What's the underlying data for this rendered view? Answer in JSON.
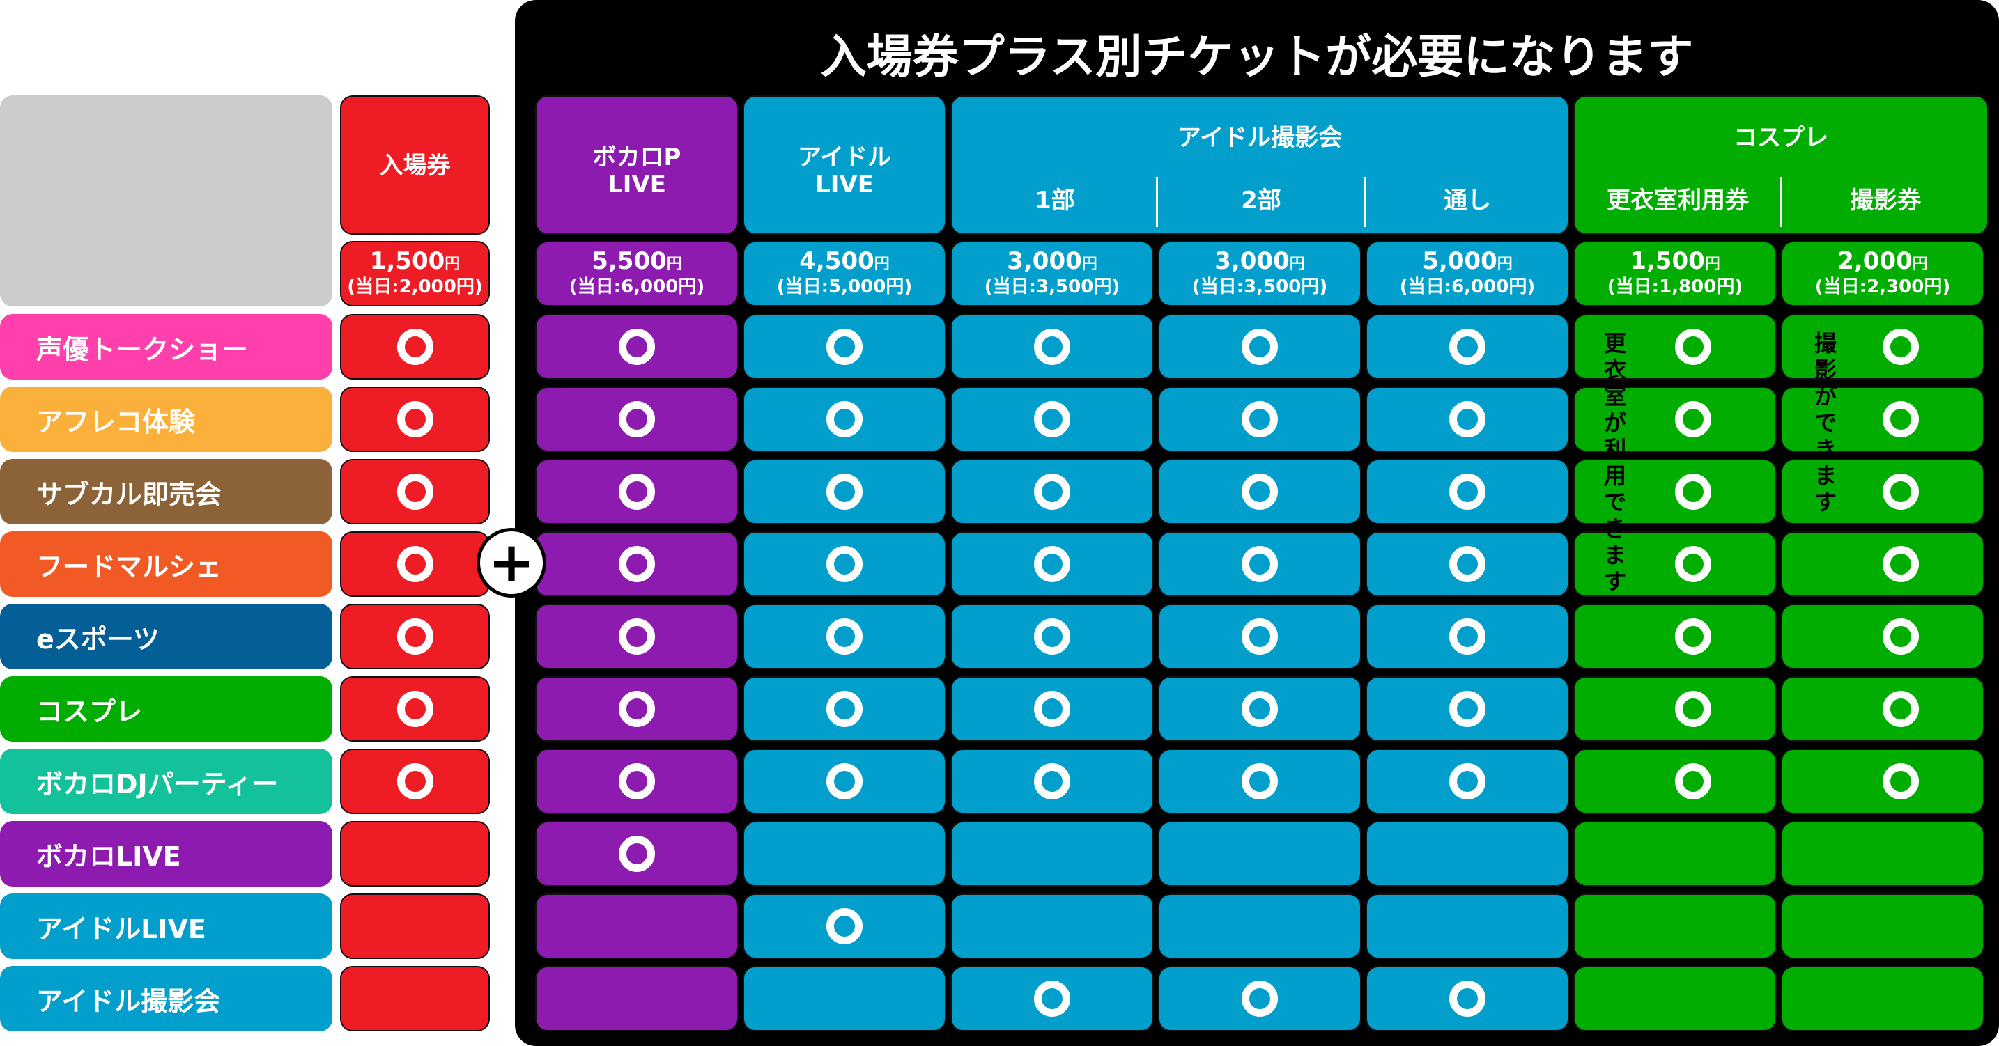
{
  "title": "入場券プラス別チケットが必要になります",
  "plus_symbol": "+",
  "admission": {
    "header": "入場券",
    "price": "1,500",
    "yen": "円",
    "sameday": "(当日:2,000円)"
  },
  "columns": [
    {
      "label_lines": [
        "ボカロP",
        "LIVE"
      ],
      "price": "5,500",
      "yen": "円",
      "sameday": "(当日:6,000円)"
    },
    {
      "label_lines": [
        "アイドル",
        "LIVE"
      ],
      "price": "4,500",
      "yen": "円",
      "sameday": "(当日:5,000円)"
    },
    {
      "label_lines": [
        "1部"
      ],
      "price": "3,000",
      "yen": "円",
      "sameday": "(当日:3,500円)"
    },
    {
      "label_lines": [
        "2部"
      ],
      "price": "3,000",
      "yen": "円",
      "sameday": "(当日:3,500円)"
    },
    {
      "label_lines": [
        "通し"
      ],
      "price": "5,000",
      "yen": "円",
      "sameday": "(当日:6,000円)"
    },
    {
      "label_lines": [
        "更衣室利用券"
      ],
      "price": "1,500",
      "yen": "円",
      "sameday": "(当日:1,800円)"
    },
    {
      "label_lines": [
        "撮影券"
      ],
      "price": "2,000",
      "yen": "円",
      "sameday": "(当日:2,300円)"
    }
  ],
  "group_headers": {
    "idol_photo": "アイドル撮影会",
    "cosplay": "コスプレ"
  },
  "notes": {
    "changing_room": "更衣室が利用できます",
    "photography": "撮影ができます"
  },
  "rows": [
    {
      "label": "声優トークショー",
      "color": "#ff3fab",
      "admission": true,
      "marks": [
        true,
        true,
        true,
        true,
        true,
        true,
        true
      ]
    },
    {
      "label": "アフレコ体験",
      "color": "#fbb03b",
      "admission": true,
      "marks": [
        true,
        true,
        true,
        true,
        true,
        true,
        true
      ]
    },
    {
      "label": "サブカル即売会",
      "color": "#8c6239",
      "admission": true,
      "marks": [
        true,
        true,
        true,
        true,
        true,
        true,
        true
      ]
    },
    {
      "label": "フードマルシェ",
      "color": "#f15a24",
      "admission": true,
      "marks": [
        true,
        true,
        true,
        true,
        true,
        true,
        true
      ]
    },
    {
      "label": "eスポーツ",
      "color": "#045f97",
      "admission": true,
      "marks": [
        true,
        true,
        true,
        true,
        true,
        true,
        true
      ]
    },
    {
      "label": "コスプレ",
      "color": "#00ad00",
      "admission": true,
      "marks": [
        true,
        true,
        true,
        true,
        true,
        true,
        true
      ]
    },
    {
      "label": "ボカロDJパーティー",
      "color": "#13c19b",
      "admission": true,
      "marks": [
        true,
        true,
        true,
        true,
        true,
        true,
        true
      ]
    },
    {
      "label": "ボカロLIVE",
      "color": "#8e1bb0",
      "admission": false,
      "marks": [
        true,
        false,
        false,
        false,
        false,
        false,
        false
      ]
    },
    {
      "label": "アイドルLIVE",
      "color": "#039fcc",
      "admission": false,
      "marks": [
        false,
        true,
        false,
        false,
        false,
        false,
        false
      ]
    },
    {
      "label": "アイドル撮影会",
      "color": "#039fcc",
      "admission": false,
      "marks": [
        false,
        false,
        true,
        true,
        true,
        false,
        false
      ]
    }
  ]
}
